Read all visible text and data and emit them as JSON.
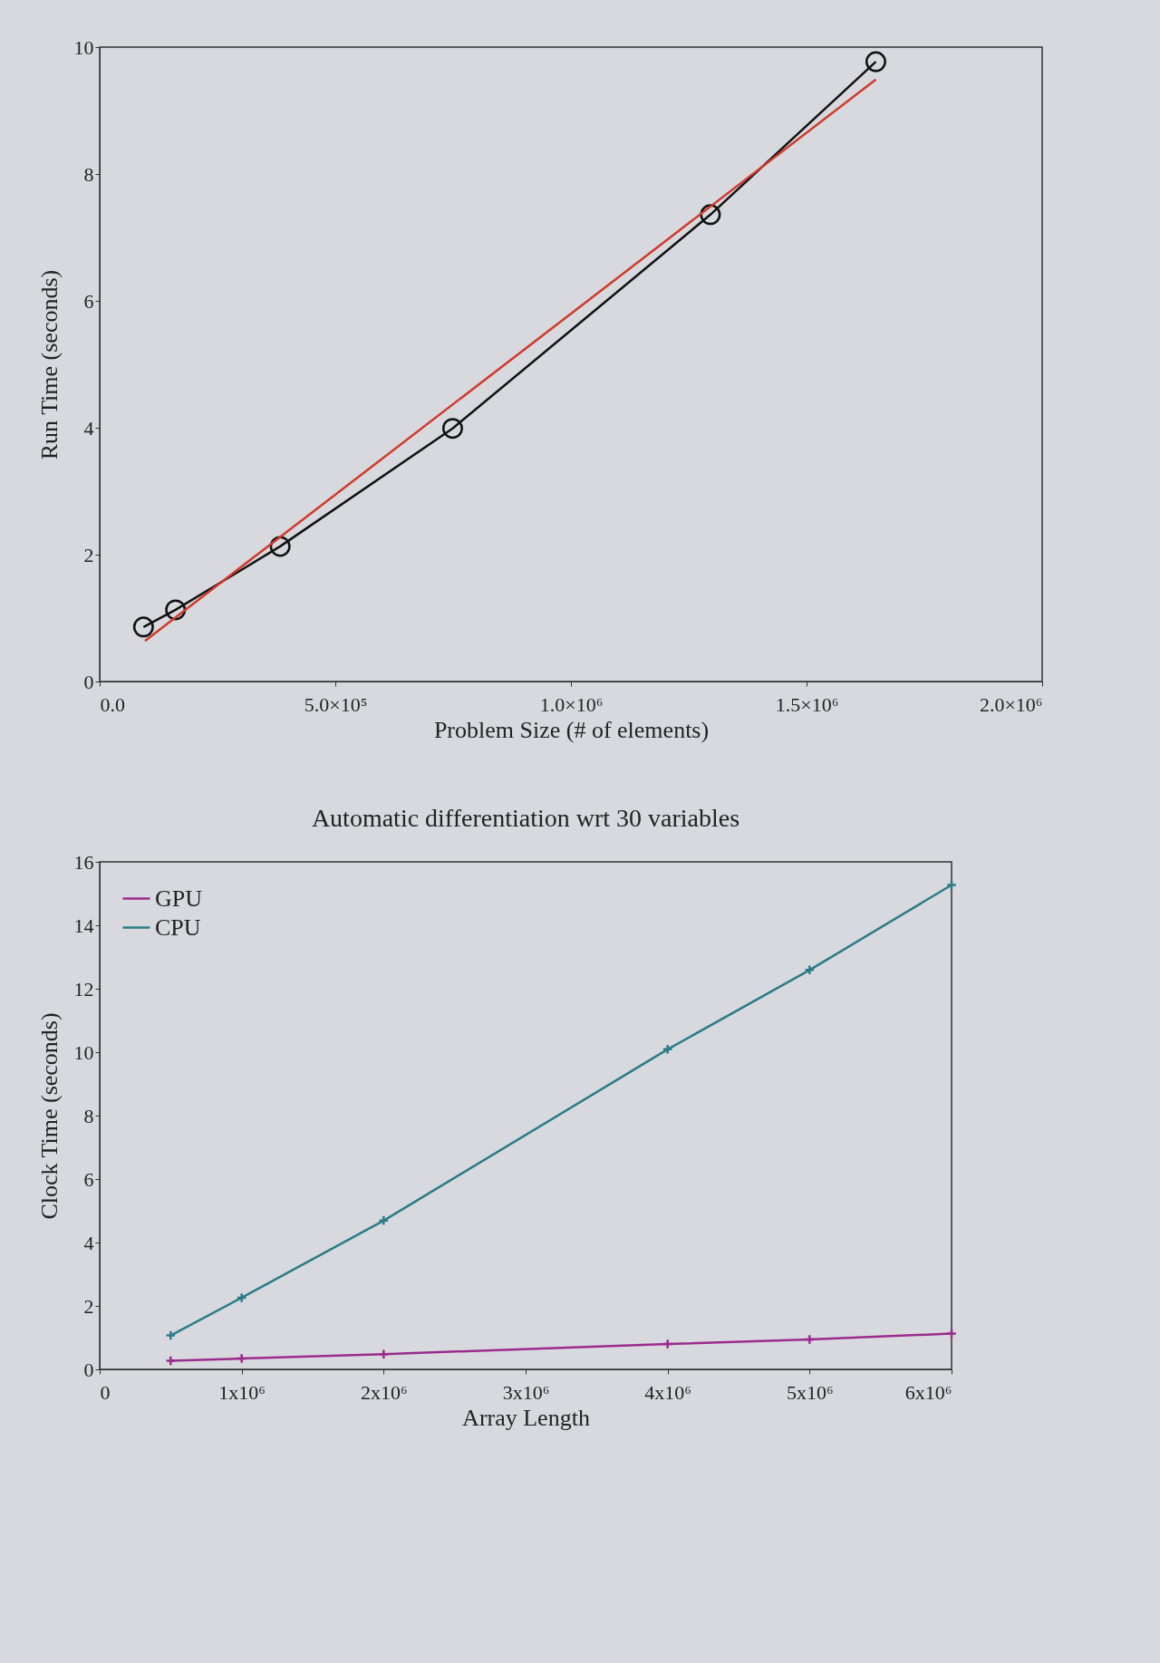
{
  "chart_data": [
    {
      "type": "line",
      "xlabel": "Problem Size (# of elements)",
      "ylabel": "Run Time (seconds)",
      "xlim": [
        0,
        2000000
      ],
      "ylim": [
        0,
        10
      ],
      "xticks": [
        {
          "value": 0,
          "label": "0.0"
        },
        {
          "value": 500000,
          "label": "5.0×10⁵"
        },
        {
          "value": 1000000,
          "label": "1.0×10⁶"
        },
        {
          "value": 1500000,
          "label": "1.5×10⁶"
        },
        {
          "value": 2000000,
          "label": "2.0×10⁶"
        }
      ],
      "yticks": [
        0,
        2,
        4,
        6,
        8,
        10
      ],
      "series": [
        {
          "color": "#111111",
          "marker": "circle",
          "x": [
            93000,
            161000,
            383000,
            749000,
            1296000,
            1647000
          ],
          "values": [
            0.86,
            1.13,
            2.13,
            3.99,
            7.36,
            9.77
          ]
        },
        {
          "color": "#d03a2c",
          "marker": "none",
          "x": [
            96000,
            1647000
          ],
          "values": [
            0.64,
            9.49
          ]
        }
      ]
    },
    {
      "type": "line",
      "title": "Automatic differentiation wrt 30 variables",
      "xlabel": "Array Length",
      "ylabel": "Clock Time (seconds)",
      "xlim": [
        0,
        6000000
      ],
      "ylim": [
        0,
        16
      ],
      "xticks": [
        0,
        {
          "value": 1000000,
          "label": "1x10⁶"
        },
        {
          "value": 2000000,
          "label": "2x10⁶"
        },
        {
          "value": 3000000,
          "label": "3x10⁶"
        },
        {
          "value": 4000000,
          "label": "4x10⁶"
        },
        {
          "value": 5000000,
          "label": "5x10⁶"
        },
        {
          "value": 6000000,
          "label": "6x10⁶"
        }
      ],
      "yticks": [
        0,
        2,
        4,
        6,
        8,
        10,
        12,
        14,
        16
      ],
      "legend": "top left",
      "x": [
        500000,
        1000000,
        2000000,
        4000000,
        5000000,
        6000000
      ],
      "series": [
        {
          "name": "GPU",
          "color": "#9b2b8c",
          "marker": "cross",
          "values": [
            0.27,
            0.34,
            0.48,
            0.8,
            0.94,
            1.13
          ]
        },
        {
          "name": "CPU",
          "color": "#2b7c86",
          "marker": "cross",
          "values": [
            1.07,
            2.26,
            4.69,
            10.09,
            12.59,
            15.27
          ]
        }
      ]
    }
  ]
}
